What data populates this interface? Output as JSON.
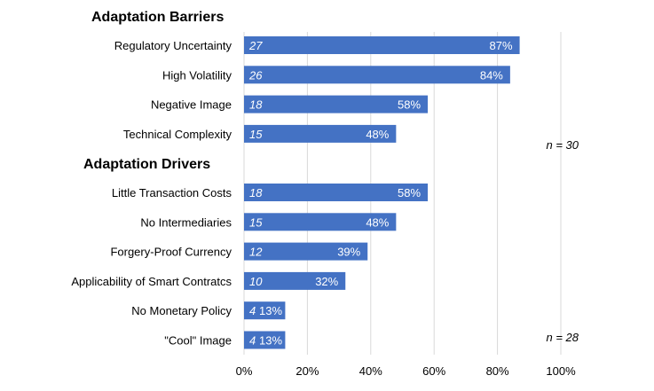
{
  "chart_data": {
    "type": "bar",
    "orientation": "horizontal",
    "xlim": [
      0,
      100
    ],
    "x_ticks": [
      "0%",
      "20%",
      "40%",
      "60%",
      "80%",
      "100%"
    ],
    "grid": true,
    "bar_color": "#4472c4",
    "sections": [
      {
        "title": "Adaptation Barriers",
        "n_label": "n = 30",
        "items": [
          {
            "label": "Regulatory Uncertainty",
            "count": 27,
            "count_label": "27",
            "value": 87,
            "value_label": "87%"
          },
          {
            "label": "High Volatility",
            "count": 26,
            "count_label": "26",
            "value": 84,
            "value_label": "84%"
          },
          {
            "label": "Negative Image",
            "count": 18,
            "count_label": "18",
            "value": 58,
            "value_label": "58%"
          },
          {
            "label": "Technical Complexity",
            "count": 15,
            "count_label": "15",
            "value": 48,
            "value_label": "48%"
          }
        ]
      },
      {
        "title": "Adaptation Drivers",
        "n_label": "n = 28",
        "items": [
          {
            "label": "Little Transaction Costs",
            "count": 18,
            "count_label": "18",
            "value": 58,
            "value_label": "58%"
          },
          {
            "label": "No Intermediaries",
            "count": 15,
            "count_label": "15",
            "value": 48,
            "value_label": "48%"
          },
          {
            "label": "Forgery-Proof Currency",
            "count": 12,
            "count_label": "12",
            "value": 39,
            "value_label": "39%"
          },
          {
            "label": "Applicability of Smart Contratcs",
            "count": 10,
            "count_label": "10",
            "value": 32,
            "value_label": "32%"
          },
          {
            "label": "No Monetary Policy",
            "count": 4,
            "count_label": "4",
            "value": 13,
            "value_label": "13%"
          },
          {
            "label": "\"Cool\" Image",
            "count": 4,
            "count_label": "4",
            "value": 13,
            "value_label": "13%"
          }
        ]
      }
    ]
  }
}
